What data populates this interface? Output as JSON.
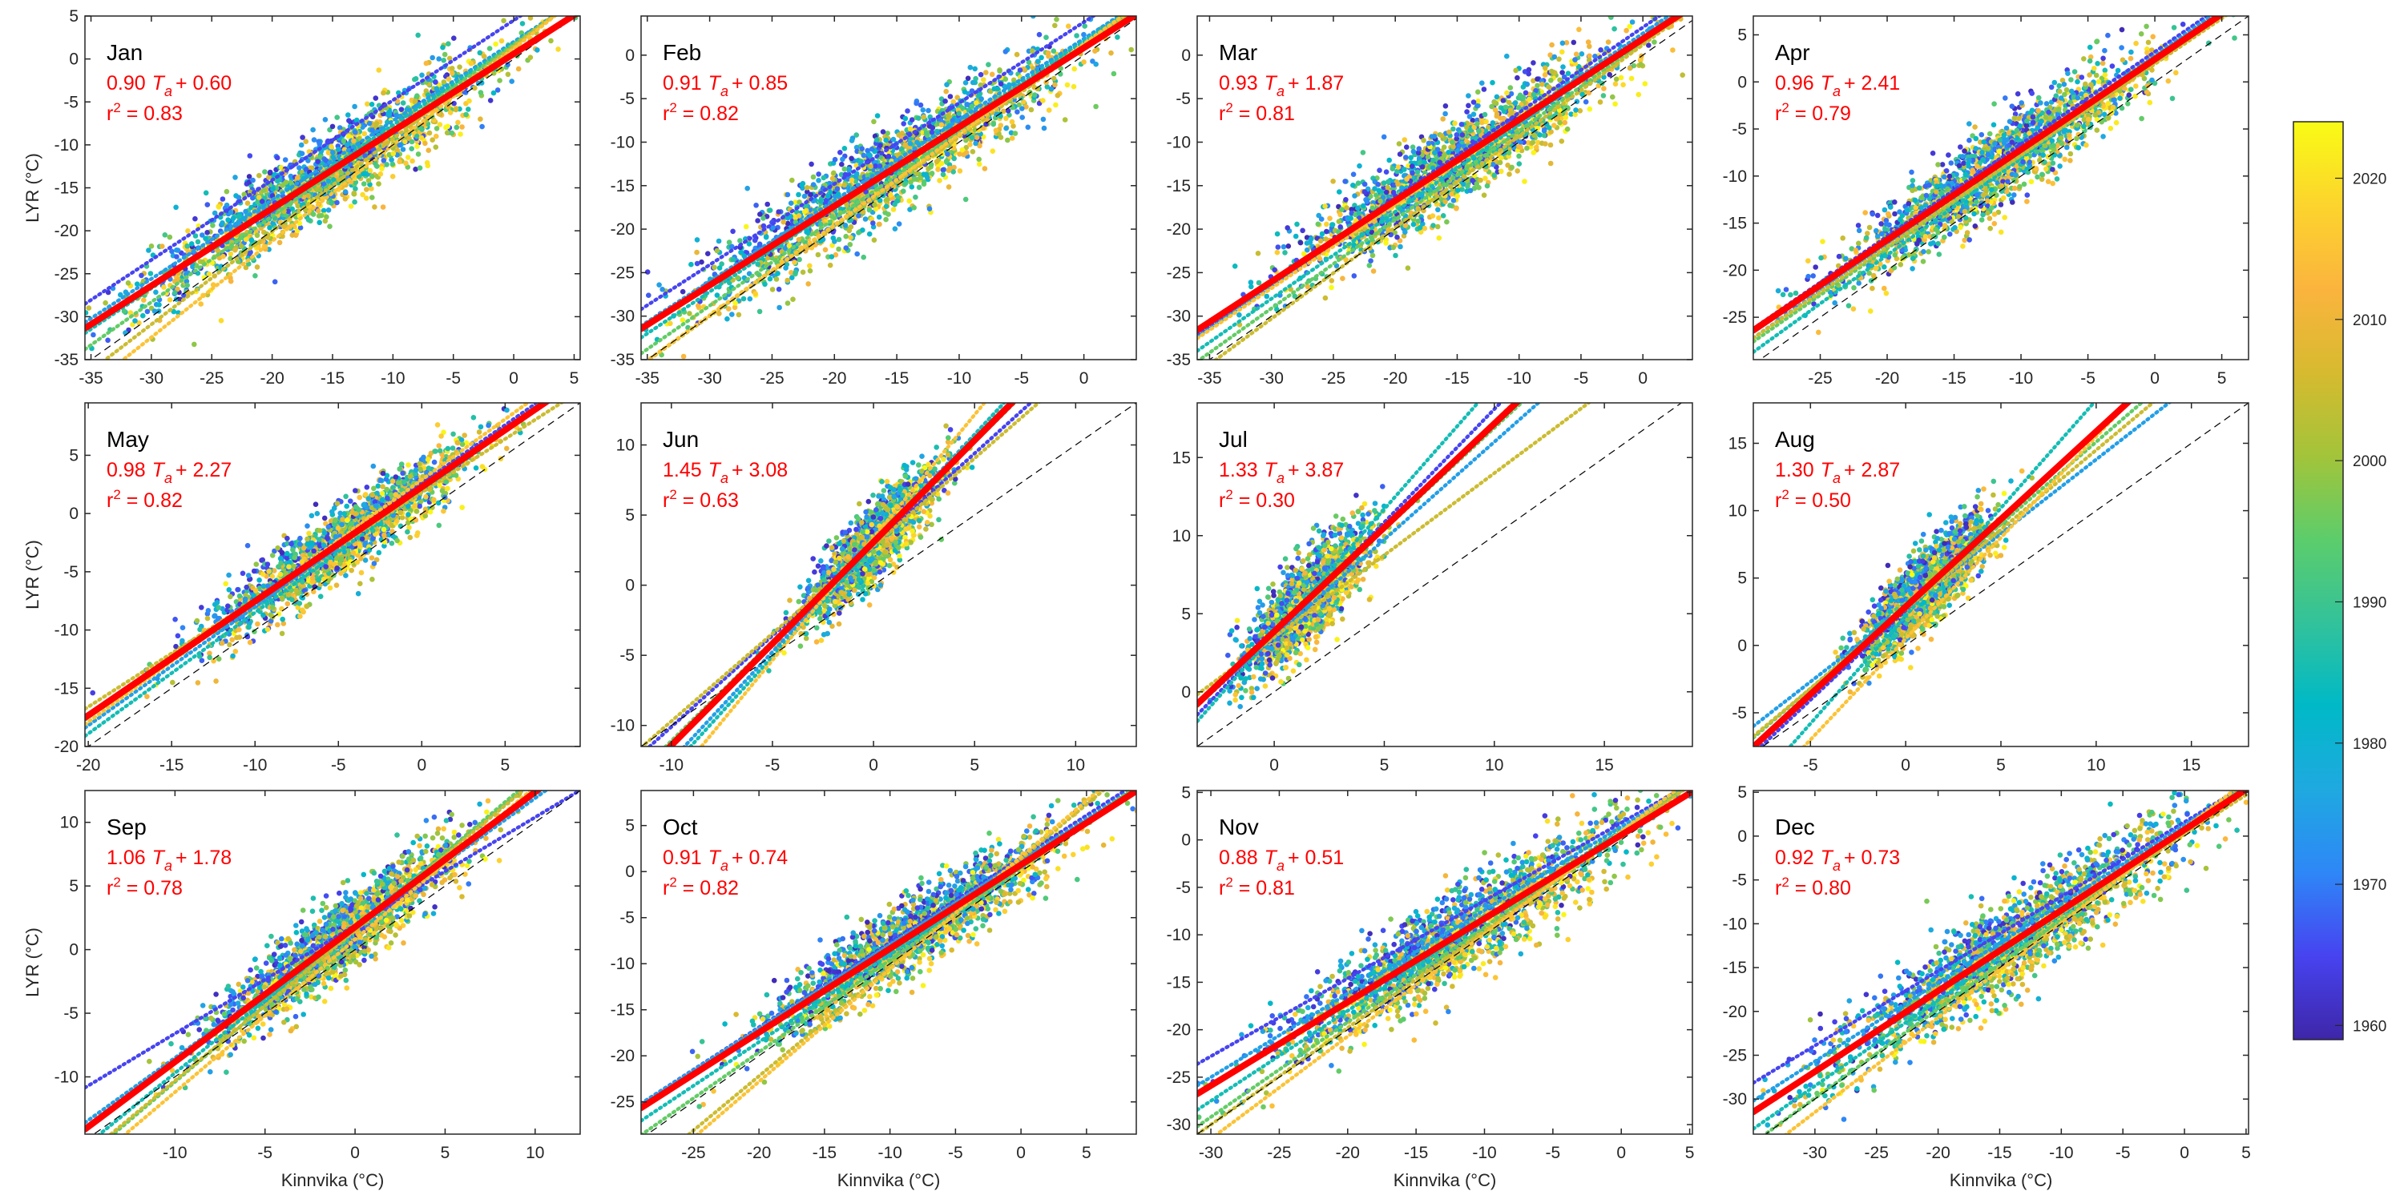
{
  "chart_data": {
    "type": "scatter",
    "title": "",
    "xlabel": "Kinnvika (°C)",
    "ylabel": "LYR (°C)",
    "grid": false,
    "reference_line": "1:1 dashed black",
    "fit_line_color": "#ff0000",
    "point_colormap": "parula",
    "colorbar": {
      "label": "",
      "range": [
        1959,
        2024
      ],
      "ticks": [
        1960,
        1970,
        1980,
        1990,
        2000,
        2010,
        2020
      ],
      "tick_labels": [
        "1960",
        "1970",
        "1980",
        "1990",
        "2000",
        "2010",
        "2020"
      ],
      "placement": "right",
      "colors": [
        "#3e26a8",
        "#4743f0",
        "#2e87f7",
        "#1fa9e0",
        "#00b9c7",
        "#33c29a",
        "#5ccd6b",
        "#a3c43a",
        "#d7ba2f",
        "#fbb43e",
        "#fcd42d",
        "#f9fb15"
      ]
    },
    "panels": [
      {
        "month": "Jan",
        "slope": "0.90",
        "intercept": "0.60",
        "r2": "0.83",
        "xlim": [
          -35.5,
          5.5
        ],
        "ylim": [
          -35,
          5
        ],
        "xticks": [
          -35,
          -30,
          -25,
          -20,
          -15,
          -10,
          -5,
          0,
          5
        ],
        "yticks": [
          -35,
          -30,
          -25,
          -20,
          -15,
          -10,
          -5,
          0,
          5
        ],
        "decadal_fits": [
          [
            0.93,
            4.5,
            1965
          ],
          [
            0.92,
            2.0,
            1975
          ],
          [
            0.95,
            1.8,
            1985
          ],
          [
            1.0,
            1.7,
            1995
          ],
          [
            1.08,
            1.5,
            2005
          ],
          [
            1.12,
            1.2,
            2015
          ]
        ]
      },
      {
        "month": "Feb",
        "slope": "0.91",
        "intercept": "0.85",
        "r2": "0.82",
        "xlim": [
          -35.5,
          4.2
        ],
        "ylim": [
          -35,
          4.5
        ],
        "xticks": [
          -35,
          -30,
          -25,
          -20,
          -15,
          -10,
          -5,
          0
        ],
        "yticks": [
          -35,
          -30,
          -25,
          -20,
          -15,
          -10,
          -5,
          0
        ],
        "decadal_fits": [
          [
            0.93,
            3.8,
            1965
          ],
          [
            0.93,
            1.9,
            1975
          ],
          [
            0.96,
            1.6,
            1985
          ],
          [
            1.0,
            1.2,
            1995
          ],
          [
            1.03,
            0.9,
            2005
          ],
          [
            1.04,
            1.3,
            2015
          ]
        ]
      },
      {
        "month": "Mar",
        "slope": "0.93",
        "intercept": "1.87",
        "r2": "0.81",
        "xlim": [
          -36,
          4
        ],
        "ylim": [
          -35,
          4.5
        ],
        "xticks": [
          -35,
          -30,
          -25,
          -20,
          -15,
          -10,
          -5,
          0
        ],
        "yticks": [
          -35,
          -30,
          -25,
          -20,
          -15,
          -10,
          -5,
          0
        ],
        "decadal_fits": [
          [
            0.98,
            3.2,
            1965
          ],
          [
            0.97,
            2.5,
            1975
          ],
          [
            1.0,
            2.0,
            1985
          ],
          [
            1.02,
            1.5,
            1995
          ],
          [
            1.05,
            1.2,
            2005
          ],
          [
            0.96,
            2.0,
            2015
          ]
        ]
      },
      {
        "month": "Apr",
        "slope": "0.96",
        "intercept": "2.41",
        "r2": "0.79",
        "xlim": [
          -30,
          7
        ],
        "ylim": [
          -29.5,
          7
        ],
        "xticks": [
          -25,
          -20,
          -15,
          -10,
          -5,
          0,
          5
        ],
        "yticks": [
          -25,
          -20,
          -15,
          -10,
          -5,
          0,
          5
        ],
        "decadal_fits": [
          [
            0.98,
            3.2,
            1965
          ],
          [
            1.0,
            2.8,
            1975
          ],
          [
            1.03,
            2.2,
            1985
          ],
          [
            0.99,
            2.1,
            1995
          ],
          [
            0.97,
            1.9,
            2005
          ],
          [
            0.95,
            2.3,
            2015
          ]
        ]
      },
      {
        "month": "May",
        "slope": "0.98",
        "intercept": "2.27",
        "r2": "0.82",
        "xlim": [
          -20.2,
          9.5
        ],
        "ylim": [
          -20,
          9.5
        ],
        "xticks": [
          -20,
          -15,
          -10,
          -5,
          0,
          5
        ],
        "yticks": [
          -20,
          -15,
          -10,
          -5,
          0,
          5
        ],
        "decadal_fits": [
          [
            1.0,
            2.6,
            1965
          ],
          [
            1.02,
            2.2,
            1975
          ],
          [
            1.04,
            1.9,
            1985
          ],
          [
            0.99,
            2.3,
            1995
          ],
          [
            0.92,
            1.8,
            2005
          ],
          [
            1.04,
            2.9,
            2015
          ]
        ]
      },
      {
        "month": "Jun",
        "slope": "1.45",
        "intercept": "3.08",
        "r2": "0.63",
        "xlim": [
          -11.5,
          13
        ],
        "ylim": [
          -11.5,
          13
        ],
        "xticks": [
          -10,
          -5,
          0,
          5,
          10
        ],
        "yticks": [
          -10,
          -5,
          0,
          5,
          10
        ],
        "decadal_fits": [
          [
            1.3,
            2.9,
            1965
          ],
          [
            1.55,
            3.0,
            1975
          ],
          [
            1.58,
            2.8,
            1985
          ],
          [
            1.42,
            3.1,
            1995
          ],
          [
            1.25,
            2.8,
            2005
          ],
          [
            1.75,
            3.4,
            2015
          ]
        ]
      },
      {
        "month": "Jul",
        "slope": "1.33",
        "intercept": "3.87",
        "r2": "0.30",
        "xlim": [
          -3.5,
          19
        ],
        "ylim": [
          -3.5,
          18.5
        ],
        "xticks": [
          0,
          5,
          10,
          15
        ],
        "yticks": [
          0,
          5,
          10,
          15
        ],
        "decadal_fits": [
          [
            1.45,
            3.6,
            1965
          ],
          [
            1.25,
            3.5,
            1975
          ],
          [
            1.6,
            3.7,
            1985
          ],
          [
            1.3,
            3.9,
            1995
          ],
          [
            1.05,
            3.5,
            2005
          ],
          [
            1.35,
            3.8,
            2015
          ]
        ]
      },
      {
        "month": "Aug",
        "slope": "1.30",
        "intercept": "2.87",
        "r2": "0.50",
        "xlim": [
          -8,
          18
        ],
        "ylim": [
          -7.5,
          18
        ],
        "xticks": [
          -5,
          0,
          5,
          10,
          15
        ],
        "yticks": [
          -5,
          0,
          5,
          10,
          15
        ],
        "decadal_fits": [
          [
            1.33,
            2.6,
            1965
          ],
          [
            1.1,
            2.8,
            1975
          ],
          [
            1.6,
            2.2,
            1985
          ],
          [
            1.22,
            2.9,
            1995
          ],
          [
            1.18,
            2.7,
            2005
          ],
          [
            1.5,
            0.5,
            2015
          ]
        ]
      },
      {
        "month": "Sep",
        "slope": "1.06",
        "intercept": "1.78",
        "r2": "0.78",
        "xlim": [
          -15,
          12.5
        ],
        "ylim": [
          -14.5,
          12.5
        ],
        "xticks": [
          -10,
          -5,
          0,
          5,
          10
        ],
        "yticks": [
          -10,
          -5,
          0,
          5,
          10
        ],
        "decadal_fits": [
          [
            0.85,
            1.9,
            1965
          ],
          [
            1.02,
            1.7,
            1975
          ],
          [
            1.15,
            1.8,
            1985
          ],
          [
            1.2,
            1.6,
            1995
          ],
          [
            1.18,
            1.5,
            2005
          ],
          [
            1.2,
            0.8,
            2015
          ]
        ]
      },
      {
        "month": "Oct",
        "slope": "0.91",
        "intercept": "0.74",
        "r2": "0.82",
        "xlim": [
          -29,
          8.8
        ],
        "ylim": [
          -28.5,
          8.8
        ],
        "xticks": [
          -25,
          -20,
          -15,
          -10,
          -5,
          0,
          5
        ],
        "yticks": [
          -25,
          -20,
          -15,
          -10,
          -5,
          0,
          5
        ],
        "decadal_fits": [
          [
            0.92,
            1.5,
            1965
          ],
          [
            0.91,
            1.2,
            1975
          ],
          [
            0.95,
            0.5,
            1985
          ],
          [
            1.0,
            0.4,
            1995
          ],
          [
            1.18,
            1.4,
            2005
          ],
          [
            1.22,
            1.6,
            2015
          ]
        ]
      },
      {
        "month": "Nov",
        "slope": "0.88",
        "intercept": "0.51",
        "r2": "0.81",
        "xlim": [
          -31,
          5.2
        ],
        "ylim": [
          -31,
          5.2
        ],
        "xticks": [
          -30,
          -25,
          -20,
          -15,
          -10,
          -5,
          0,
          5
        ],
        "yticks": [
          -30,
          -25,
          -20,
          -15,
          -10,
          -5,
          0,
          5
        ],
        "decadal_fits": [
          [
            0.82,
            1.8,
            1965
          ],
          [
            0.88,
            1.4,
            1975
          ],
          [
            0.95,
            1.0,
            1985
          ],
          [
            1.0,
            0.8,
            1995
          ],
          [
            1.02,
            0.6,
            2005
          ],
          [
            1.08,
            0.9,
            2015
          ]
        ]
      },
      {
        "month": "Dec",
        "slope": "0.92",
        "intercept": "0.73",
        "r2": "0.80",
        "xlim": [
          -35,
          5.2
        ],
        "ylim": [
          -34,
          5.2
        ],
        "xticks": [
          -30,
          -25,
          -20,
          -15,
          -10,
          -5,
          0,
          5
        ],
        "yticks": [
          -30,
          -25,
          -20,
          -15,
          -10,
          -5,
          0,
          5
        ],
        "decadal_fits": [
          [
            0.85,
            1.6,
            1965
          ],
          [
            0.9,
            1.3,
            1975
          ],
          [
            0.98,
            0.9,
            1985
          ],
          [
            1.02,
            0.7,
            1995
          ],
          [
            0.9,
            0.2,
            2005
          ],
          [
            1.08,
            0.9,
            2015
          ]
        ]
      }
    ]
  }
}
